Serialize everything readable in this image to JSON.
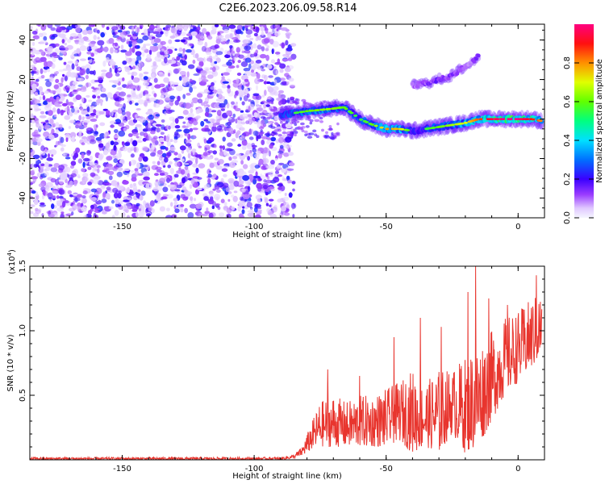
{
  "title": "C2E6.2023.206.09.58.R14",
  "chart_data": [
    {
      "type": "heatmap",
      "name": "spectrogram",
      "xlabel": "Height of straight line (km)",
      "ylabel": "Frequency (Hz)",
      "xlim": [
        -185,
        10
      ],
      "ylim": [
        -50,
        48
      ],
      "xticks": [
        -150,
        -100,
        -50,
        0
      ],
      "yticks": [
        -40,
        -20,
        0,
        20,
        40
      ],
      "noise_region_x": [
        -185,
        -85
      ],
      "signal_traces": [
        {
          "name": "main-trace",
          "x": [
            -90,
            -80,
            -72,
            -66,
            -60,
            -55,
            -50,
            -45,
            -40,
            -35,
            -30,
            -25,
            -20,
            -15,
            -10,
            -5,
            0,
            5,
            9
          ],
          "y": [
            2,
            4,
            5,
            6,
            0,
            -3,
            -5,
            -5,
            -6,
            -5,
            -4,
            -3,
            -2,
            0,
            0,
            0,
            0,
            0,
            -1
          ],
          "amplitude": [
            0.4,
            0.5,
            0.55,
            0.5,
            0.45,
            0.5,
            0.7,
            0.65,
            0.4,
            0.45,
            0.5,
            0.55,
            0.6,
            0.75,
            0.85,
            0.9,
            0.9,
            0.8,
            0.7
          ]
        },
        {
          "name": "upper-trace",
          "x": [
            -40,
            -35,
            -30,
            -25,
            -22,
            -18,
            -15
          ],
          "y": [
            17,
            18,
            20,
            22,
            25,
            28,
            32
          ],
          "amplitude": [
            0.2,
            0.25,
            0.3,
            0.25,
            0.2,
            0.2,
            0.25
          ]
        }
      ],
      "colorbar": {
        "label": "Normalized spectral amplitude",
        "range": [
          0.0,
          1.0
        ],
        "ticks": [
          0.0,
          0.2,
          0.4,
          0.6,
          0.8
        ]
      }
    },
    {
      "type": "line",
      "name": "snr",
      "xlabel": "Height of straight line (km)",
      "ylabel": "SNR (10 * v/v)",
      "yscale_label": "(x10",
      "yscale_exp": "4",
      "yscale_close": ")",
      "xlim": [
        -185,
        10
      ],
      "ylim": [
        0,
        1.5
      ],
      "xticks": [
        -150,
        -100,
        -50,
        0
      ],
      "yticks": [
        0.5,
        1.0,
        1.5
      ],
      "ytick_labels": [
        "0.5",
        "1.0",
        "1.5"
      ],
      "color": "#e8352e",
      "envelope": {
        "x": [
          -185,
          -90,
          -85,
          -82,
          -80,
          -78,
          -75,
          -70,
          -65,
          -60,
          -55,
          -50,
          -45,
          -40,
          -35,
          -30,
          -25,
          -20,
          -15,
          -10,
          -5,
          0,
          5,
          9
        ],
        "low": [
          0.0,
          0.0,
          0.01,
          0.03,
          0.05,
          0.08,
          0.1,
          0.1,
          0.1,
          0.1,
          0.1,
          0.1,
          0.15,
          0.05,
          0.1,
          0.05,
          0.2,
          0.05,
          0.1,
          0.3,
          0.5,
          0.6,
          0.7,
          0.8
        ],
        "high": [
          0.02,
          0.02,
          0.04,
          0.1,
          0.2,
          0.3,
          0.45,
          0.5,
          0.45,
          0.5,
          0.5,
          0.55,
          0.6,
          0.7,
          0.6,
          0.7,
          0.7,
          0.8,
          0.9,
          1.0,
          1.1,
          1.15,
          1.25,
          1.3
        ]
      },
      "peaks": [
        {
          "x": -72,
          "y": 0.7
        },
        {
          "x": -60,
          "y": 0.65
        },
        {
          "x": -47,
          "y": 0.95
        },
        {
          "x": -37,
          "y": 1.1
        },
        {
          "x": -29,
          "y": 1.03
        },
        {
          "x": -19,
          "y": 1.3
        },
        {
          "x": -16,
          "y": 1.5
        },
        {
          "x": -11,
          "y": 1.25
        },
        {
          "x": -4,
          "y": 1.2
        },
        {
          "x": 7,
          "y": 1.43
        }
      ]
    }
  ]
}
